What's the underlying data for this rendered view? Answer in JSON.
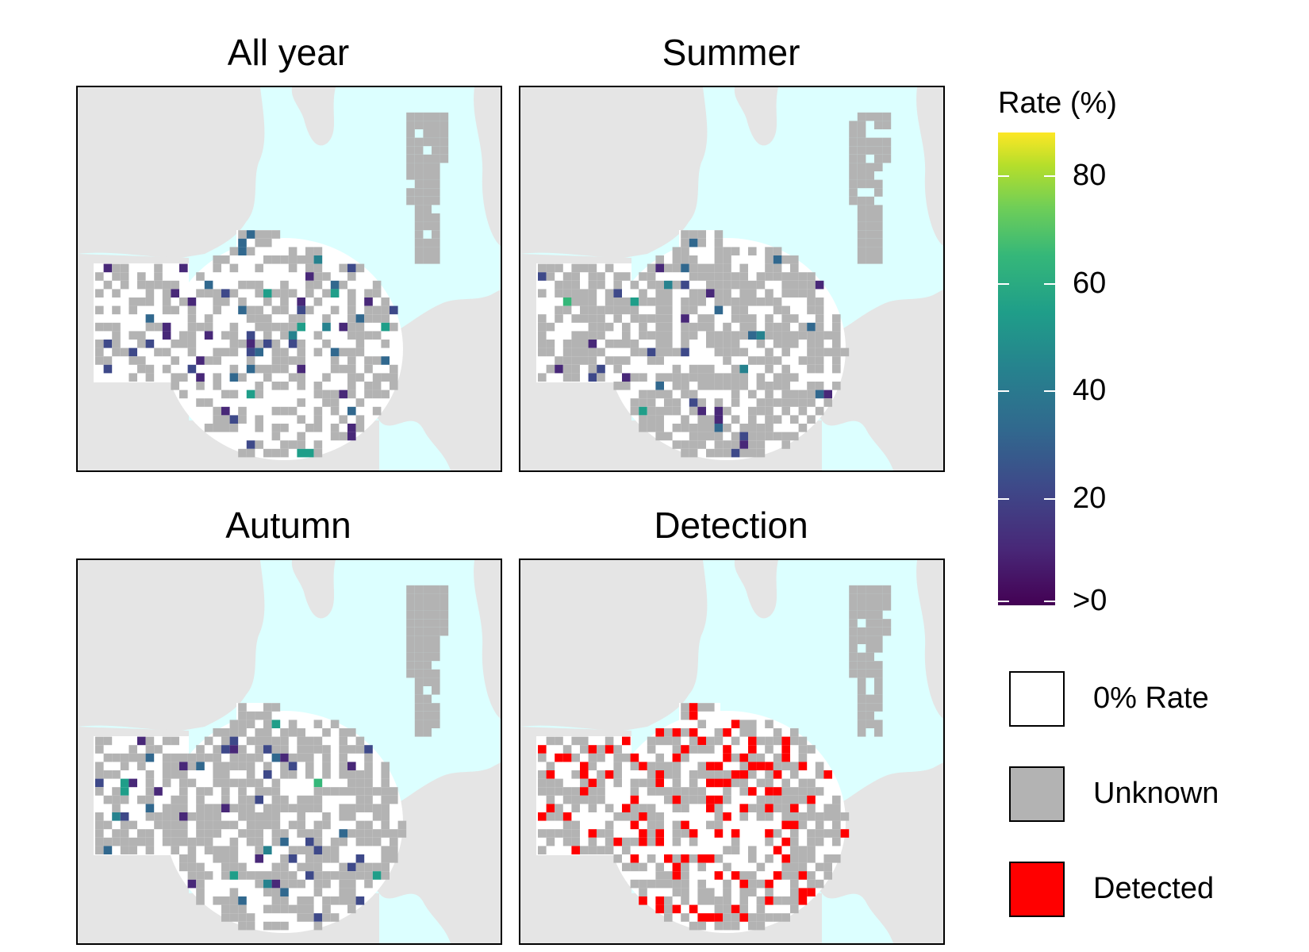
{
  "panels": [
    {
      "title": "All year",
      "mode": "rate"
    },
    {
      "title": "Summer",
      "mode": "rate"
    },
    {
      "title": "Autumn",
      "mode": "rate"
    },
    {
      "title": "Detection",
      "mode": "detection"
    }
  ],
  "legend": {
    "title": "Rate (%)",
    "ticks": [
      {
        "value": 80,
        "label": "80"
      },
      {
        "value": 60,
        "label": "60"
      },
      {
        "value": 40,
        "label": "40"
      },
      {
        "value": 20,
        "label": "20"
      },
      {
        "value": 0,
        "label": ">0"
      }
    ],
    "max": 88,
    "keys": [
      {
        "label": "0% Rate",
        "color": "#ffffff"
      },
      {
        "label": "Unknown",
        "color": "#b3b3b3"
      },
      {
        "label": "Detected",
        "color": "#ff0000"
      }
    ]
  },
  "colors": {
    "water": "#dcffff",
    "land": "#e5e5e5",
    "unknown": "#b3b3b3",
    "zero_rate": "#ffffff",
    "detected": "#ff0000",
    "frame": "#000000"
  }
}
